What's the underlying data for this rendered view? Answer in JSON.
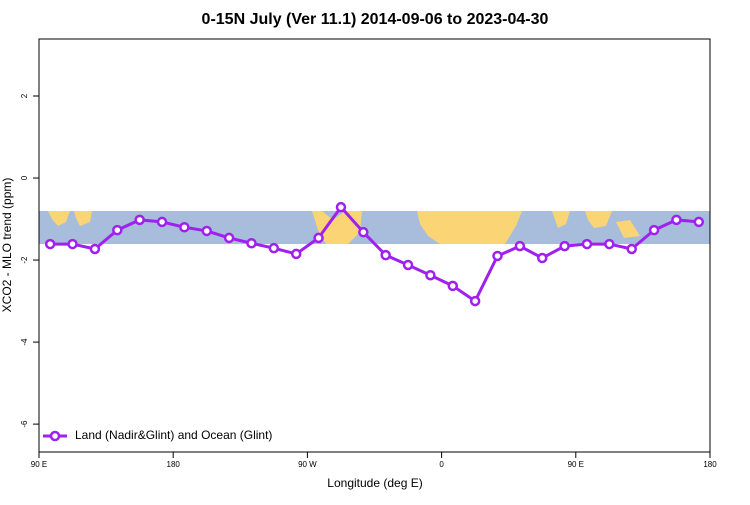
{
  "chart_data": {
    "type": "line",
    "title": "0-15N July (Ver 11.1)   2014-09-06 to 2023-04-30",
    "x_label": "Longitude (deg E)",
    "y_label": "XCO2 - MLO trend (ppm)",
    "x": [
      97.5,
      112.5,
      127.5,
      142.5,
      157.5,
      172.5,
      187.5,
      202.5,
      217.5,
      232.5,
      247.5,
      262.5,
      277.5,
      292.5,
      307.5,
      322.5,
      337.5,
      352.5,
      367.5,
      382.5,
      397.5,
      412.5,
      427.5,
      442.5,
      457.5,
      472.5,
      487.5,
      502.5,
      517.5,
      532.5
    ],
    "series": [
      {
        "name": "Land (Nadir&Glint) and Ocean (Glint)",
        "color": "#a020f0",
        "values": [
          -1.61,
          -1.61,
          -1.73,
          -1.27,
          -1.02,
          -1.07,
          -1.2,
          -1.29,
          -1.46,
          -1.59,
          -1.71,
          -1.85,
          -1.46,
          -0.71,
          -1.32,
          -1.88,
          -2.12,
          -2.37,
          -2.63,
          -3.0,
          -1.9,
          -1.66,
          -1.95,
          -1.66,
          -1.61,
          -1.61,
          -1.73,
          -1.27,
          -1.02,
          -1.07
        ]
      }
    ],
    "xlim": [
      90,
      540
    ],
    "xticks": [
      {
        "value": 90,
        "label": "90 E"
      },
      180,
      {
        "value": 270,
        "label": "90 W"
      },
      {
        "value": 360,
        "label": "0"
      },
      {
        "value": 450,
        "label": "90 E"
      },
      {
        "value": 540,
        "label": "180"
      }
    ],
    "ylim": [
      -6.68,
      3.39
    ],
    "yticks": [
      -6,
      -4,
      -2,
      0,
      2
    ],
    "legend": "bottom-left"
  }
}
